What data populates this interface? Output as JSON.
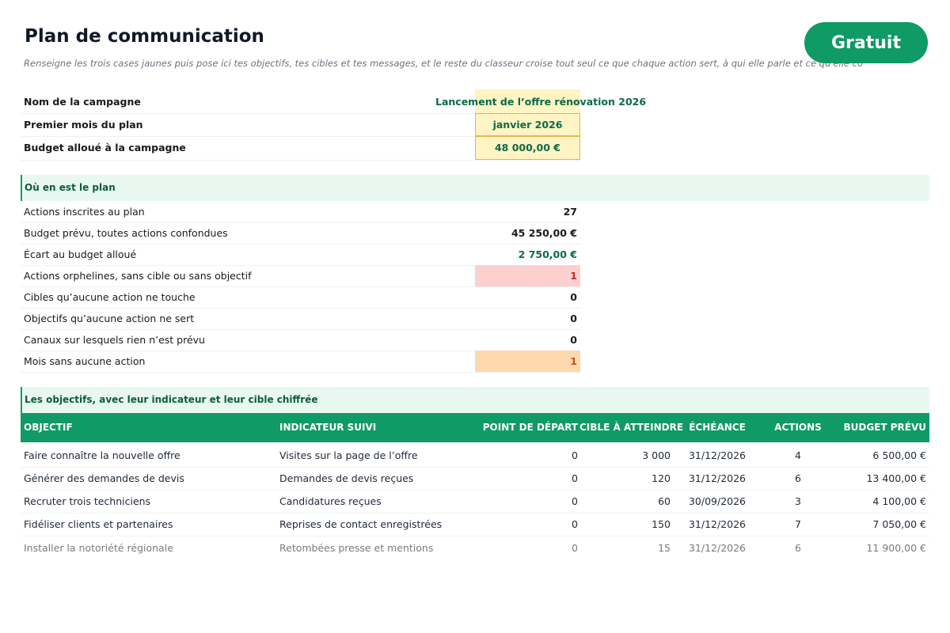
{
  "header": {
    "title": "Plan de communication",
    "subtitle": "Renseigne les trois cases jaunes puis pose ici tes objectifs, tes cibles et tes messages, et le reste du classeur croise tout seul ce que chaque action sert, à qui elle parle et ce qu'elle coûte.",
    "badge": "Gratuit"
  },
  "campaign": [
    {
      "label": "Nom de la campagne",
      "value": "Lancement de l’offre rénovation 2026"
    },
    {
      "label": "Premier mois du plan",
      "value": "janvier 2026"
    },
    {
      "label": "Budget alloué à la campagne",
      "value": "48 000,00 €"
    }
  ],
  "status": {
    "title": "Où en est le plan",
    "rows": [
      {
        "label": "Actions inscrites au plan",
        "value": "27"
      },
      {
        "label": "Budget prévu, toutes actions confondues",
        "value": "45 250,00 €"
      },
      {
        "label": "Écart au budget alloué",
        "value": "2 750,00 €"
      },
      {
        "label": "Actions orphelines, sans cible ou sans objectif",
        "value": "1"
      },
      {
        "label": "Cibles qu’aucune action ne touche",
        "value": "0"
      },
      {
        "label": "Objectifs qu’aucune action ne sert",
        "value": "0"
      },
      {
        "label": "Canaux sur lesquels rien n’est prévu",
        "value": "0"
      },
      {
        "label": "Mois sans aucune action",
        "value": "1"
      }
    ]
  },
  "objectives": {
    "title": "Les objectifs, avec leur indicateur et leur cible chiffrée",
    "columns": [
      "OBJECTIF",
      "INDICATEUR SUIVI",
      "POINT DE DÉPART",
      "CIBLE À ATTEINDRE",
      "ÉCHÉANCE",
      "ACTIONS",
      "BUDGET PRÉVU"
    ],
    "rows": [
      [
        "Faire connaître la nouvelle offre",
        "Visites sur la page de l’offre",
        "0",
        "3 000",
        "31/12/2026",
        "4",
        "6 500,00 €"
      ],
      [
        "Générer des demandes de devis",
        "Demandes de devis reçues",
        "0",
        "120",
        "31/12/2026",
        "6",
        "13 400,00 €"
      ],
      [
        "Recruter trois techniciens",
        "Candidatures reçues",
        "0",
        "60",
        "30/09/2026",
        "3",
        "4 100,00 €"
      ],
      [
        "Fidéliser clients et partenaires",
        "Reprises de contact enregistrées",
        "0",
        "150",
        "31/12/2026",
        "7",
        "7 050,00 €"
      ],
      [
        "Installer la notoriété régionale",
        "Retombées presse et mentions",
        "0",
        "15",
        "31/12/2026",
        "6",
        "11 900,00 €"
      ]
    ]
  }
}
